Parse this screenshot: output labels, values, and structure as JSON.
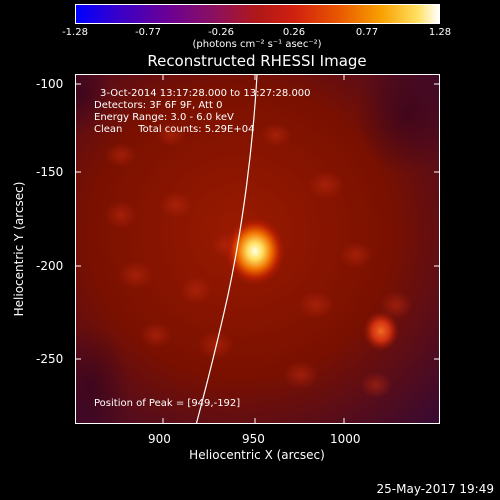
{
  "colorbar": {
    "ticks": [
      "-1.28",
      "-0.77",
      "-0.26",
      "0.26",
      "0.77",
      "1.28"
    ],
    "unit_text": "(photons cm⁻² s⁻¹ asec⁻²)"
  },
  "title": "Reconstructed RHESSI Image",
  "info": {
    "time": "3-Oct-2014 13:17:28.000 to 13:27:28.000",
    "detectors": "Detectors: 3F 6F 9F, Att 0",
    "energy": "Energy Range: 3.0 - 6.0 keV",
    "clean": "Clean     Total counts: 5.29E+04",
    "peak": "Position of Peak = [949,-192]"
  },
  "axes": {
    "xlabel": "Heliocentric X (arcsec)",
    "ylabel": "Heliocentric Y (arcsec)",
    "xticks": [
      "900",
      "950",
      "1000"
    ],
    "yticks": [
      "-100",
      "-150",
      "-200",
      "-250"
    ]
  },
  "footer": {
    "date": "25-May-2017 19:49"
  },
  "colors": {
    "background": "#000000",
    "image_base": "#6a0a00",
    "peak": "#ffffe0"
  }
}
